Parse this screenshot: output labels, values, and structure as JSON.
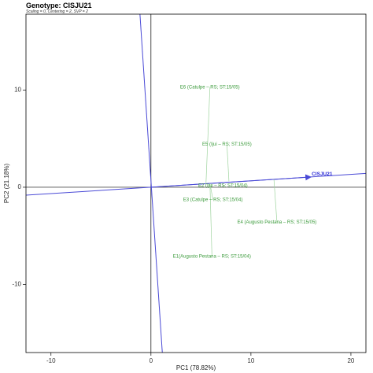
{
  "header": {
    "title": "Genotype: CISJU21",
    "subtitle": "Scaling = 0, Centering = 2, SVP = 2"
  },
  "chart_data": {
    "type": "scatter",
    "title": "Genotype: CISJU21",
    "subtitle": "Scaling = 0, Centering = 2, SVP = 2",
    "xlabel": "PC1 (78.82%)",
    "ylabel": "PC2 (21.18%)",
    "xlim": [
      -12.5,
      21.5
    ],
    "ylim": [
      -17,
      17.8
    ],
    "x_ticks": [
      -10,
      0,
      10,
      20
    ],
    "y_ticks": [
      -10,
      0,
      10
    ],
    "x_tick_labels": [
      "-10",
      "0",
      "10",
      "20"
    ],
    "y_tick_labels": [
      "-10",
      "0",
      "10"
    ],
    "grid": false,
    "genotype": {
      "name": "CISJU21",
      "x": 16,
      "y": 1.05
    },
    "environments": [
      {
        "label": "E6 (Catulpe – RS; ST:15/05)",
        "x": 5.9,
        "y": 10.3,
        "proj_x": 5.5,
        "proj_y": 0.3
      },
      {
        "label": "E5 (Ijui – RS; ST:15/05)",
        "x": 7.6,
        "y": 4.4,
        "proj_x": 7.8,
        "proj_y": 0.6
      },
      {
        "label": "E2 (Ijui – RS; ST:15/04)",
        "x": 7.2,
        "y": 0.15,
        "proj_x": 7.4,
        "proj_y": 0.2
      },
      {
        "label": "E3 (Catulpe – RS; ST:15/04)",
        "x": 6.2,
        "y": -1.3,
        "proj_x": 5.9,
        "proj_y": 0.4
      },
      {
        "label": "E4 (Augusto Pestana – RS; ST:15/05)",
        "x": 12.6,
        "y": -3.6,
        "proj_x": 12.3,
        "proj_y": 0.8
      },
      {
        "label": "E1(Augusto Pestana – RS; ST:15/04)",
        "x": 6.1,
        "y": -7.1,
        "proj_x": 5.9,
        "proj_y": 0.4
      }
    ],
    "genotype_axis": {
      "from": [
        -13,
        -0.85
      ],
      "to": [
        22,
        1.45
      ]
    },
    "perpendicular_axis": {
      "from": [
        -1.1,
        17.8
      ],
      "to": [
        1.2,
        -18
      ]
    },
    "colors": {
      "axis_lines": "#4a4ad6",
      "environments": "#3a9a3a",
      "genotype": "#2b2bd6",
      "frame": "#000000"
    }
  }
}
